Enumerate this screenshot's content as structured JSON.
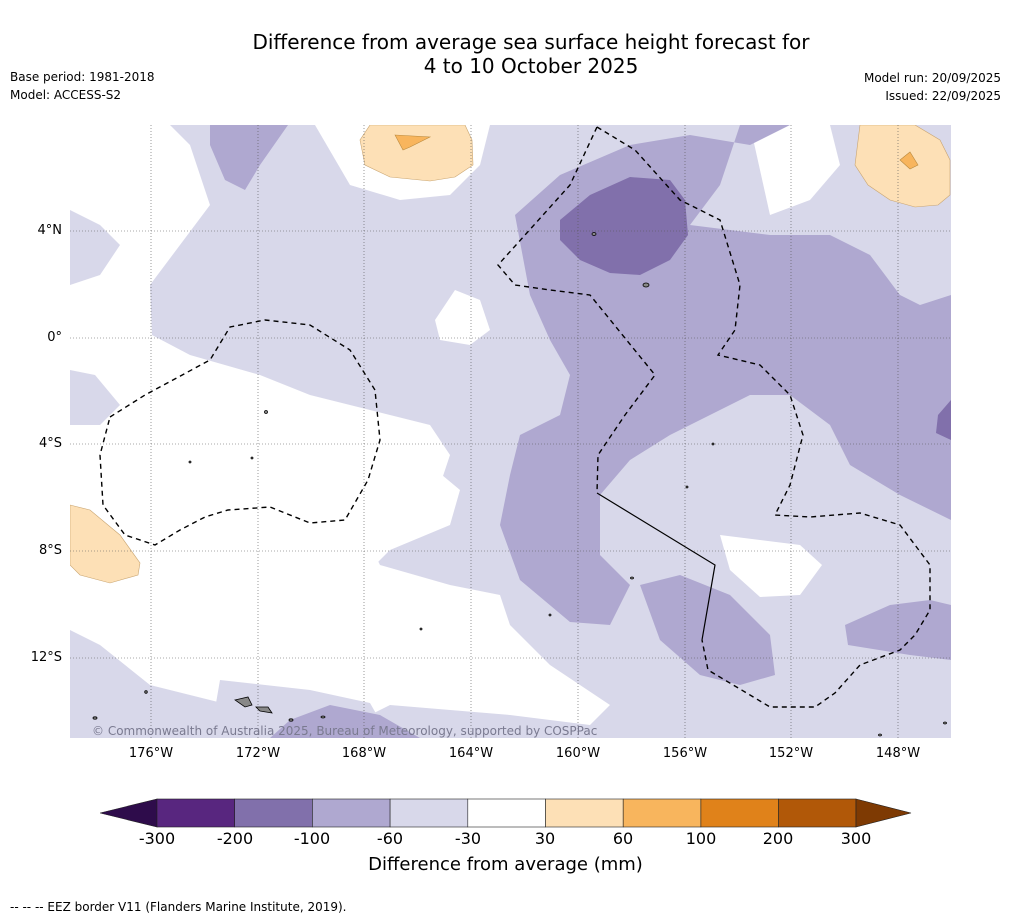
{
  "header": {
    "title_line1": "Difference from average sea surface height forecast for",
    "title_line2": "4 to 10 October 2025",
    "base_period": "Base period: 1981-2018",
    "model": "Model: ACCESS-S2",
    "model_run": "Model run: 20/09/2025",
    "issued": "Issued: 22/09/2025"
  },
  "map": {
    "lat_labels": [
      "4°N",
      "0°",
      "4°S",
      "8°S",
      "12°S"
    ],
    "lon_labels": [
      "176°W",
      "172°W",
      "168°W",
      "164°W",
      "160°W",
      "156°W",
      "152°W",
      "148°W"
    ],
    "copyright": "© Commonwealth of Australia 2025, Bureau of Meteorology, supported by COSPPac"
  },
  "colorbar": {
    "ticks": [
      "-300",
      "-200",
      "-100",
      "-60",
      "-30",
      "30",
      "60",
      "100",
      "200",
      "300"
    ],
    "colors": [
      "#58267f",
      "#8170ab",
      "#afa8d0",
      "#d8d8ea",
      "#ffffff",
      "#fde0b6",
      "#f8b55d",
      "#e0821a",
      "#b15808"
    ],
    "under_color": "#2e0c4b",
    "over_color": "#7e3a03",
    "label": "Difference from average (mm)"
  },
  "footer": {
    "eez_note": "--  --  -- EEZ border V11 (Flanders Marine Institute, 2019)."
  },
  "colors": {
    "neg_30_60": "#d8d8ea",
    "neg_60_100": "#afa8d0",
    "neg_100_200": "#8170ab",
    "pos_30_60": "#fde0b6",
    "pos_60_100": "#f8b55d"
  }
}
